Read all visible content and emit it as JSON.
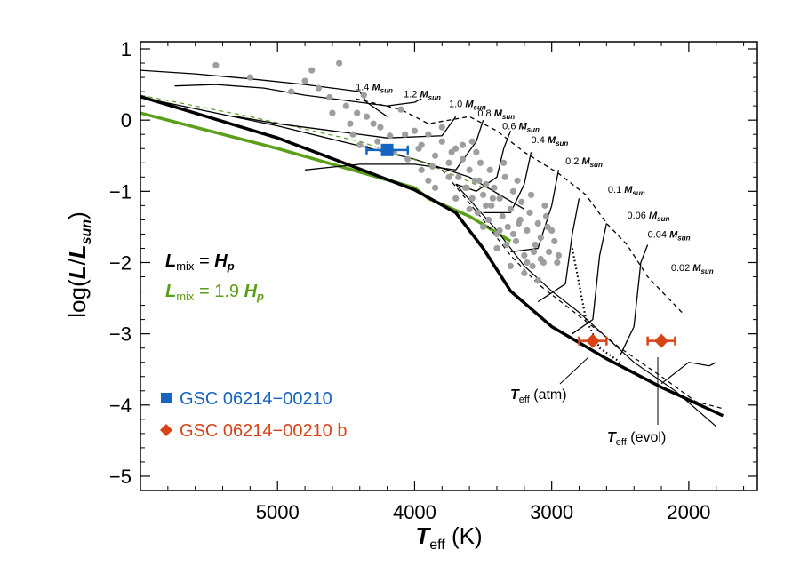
{
  "chart_data": {
    "type": "scatter",
    "title": "",
    "xlabel": "T_eff (K)",
    "ylabel": "log(L/L_sun)",
    "xlim": [
      6000,
      1500
    ],
    "ylim": [
      -5.2,
      1.1
    ],
    "x_ticks": [
      "5000",
      "4000",
      "3000",
      "2000"
    ],
    "y_ticks": [
      "1",
      "0",
      "−1",
      "−2",
      "−3",
      "−4",
      "−5"
    ],
    "grid": false,
    "isochrone_labels": [
      {
        "text": "1.4 M",
        "sub": "sun",
        "at": [
          4430,
          0.42
        ]
      },
      {
        "text": "1.2 M",
        "sub": "sun",
        "at": [
          4080,
          0.32
        ]
      },
      {
        "text": "1.0 M",
        "sub": "sun",
        "at": [
          3750,
          0.18
        ]
      },
      {
        "text": "0.8 M",
        "sub": "sun",
        "at": [
          3540,
          0.05
        ]
      },
      {
        "text": "0.6 M",
        "sub": "sun",
        "at": [
          3360,
          -0.13
        ]
      },
      {
        "text": "0.4 M",
        "sub": "sun",
        "at": [
          3150,
          -0.32
        ]
      },
      {
        "text": "0.2 M",
        "sub": "sun",
        "at": [
          2900,
          -0.62
        ]
      },
      {
        "text": "0.1 M",
        "sub": "sun",
        "at": [
          2590,
          -1.02
        ]
      },
      {
        "text": "0.06 M",
        "sub": "sun",
        "at": [
          2450,
          -1.38
        ]
      },
      {
        "text": "0.04 M",
        "sub": "sun",
        "at": [
          2300,
          -1.65
        ]
      },
      {
        "text": "0.02 M",
        "sub": "sun",
        "at": [
          2130,
          -2.12
        ]
      }
    ],
    "series": [
      {
        "name": "GSC 06214−00210",
        "color": "#1565c0",
        "marker": "square",
        "points": [
          {
            "x": 4200,
            "y": -0.42,
            "xerr": 150
          }
        ]
      },
      {
        "name": "GSC 06214−00210 b",
        "color": "#d84315",
        "marker": "diamond",
        "points": [
          {
            "x": 2700,
            "y": -3.1,
            "xerr": 100
          },
          {
            "x": 2200,
            "y": -3.1,
            "xerr": 100
          }
        ]
      }
    ],
    "background_stars": {
      "color": "#9e9e9e",
      "points": [
        [
          5450,
          0.77
        ],
        [
          5200,
          0.6
        ],
        [
          4900,
          0.4
        ],
        [
          4750,
          0.7
        ],
        [
          4550,
          0.8
        ],
        [
          4700,
          0.45
        ],
        [
          4620,
          0.32
        ],
        [
          4500,
          0.2
        ],
        [
          4420,
          0.1
        ],
        [
          4350,
          0.05
        ],
        [
          4300,
          -0.05
        ],
        [
          4450,
          -0.2
        ],
        [
          4250,
          -0.1
        ],
        [
          4180,
          -0.22
        ],
        [
          4100,
          0.15
        ],
        [
          4000,
          -0.15
        ],
        [
          3950,
          -0.35
        ],
        [
          3900,
          -0.2
        ],
        [
          3850,
          -0.5
        ],
        [
          3800,
          -0.3
        ],
        [
          3750,
          -0.6
        ],
        [
          3700,
          -0.4
        ],
        [
          3680,
          -0.8
        ],
        [
          3650,
          -0.55
        ],
        [
          3620,
          -0.95
        ],
        [
          3600,
          -0.7
        ],
        [
          3580,
          -1.1
        ],
        [
          3560,
          -0.85
        ],
        [
          3540,
          -1.3
        ],
        [
          3520,
          -0.6
        ],
        [
          3500,
          -1.05
        ],
        [
          3480,
          -0.9
        ],
        [
          3460,
          -1.4
        ],
        [
          3440,
          -1.2
        ],
        [
          3420,
          -0.95
        ],
        [
          3400,
          -1.6
        ],
        [
          3380,
          -1.1
        ],
        [
          3360,
          -1.35
        ],
        [
          3340,
          -0.8
        ],
        [
          3320,
          -1.5
        ],
        [
          3300,
          -1.25
        ],
        [
          3280,
          -1.0
        ],
        [
          3260,
          -1.7
        ],
        [
          3240,
          -1.45
        ],
        [
          3220,
          -1.15
        ],
        [
          3200,
          -1.9
        ],
        [
          3180,
          -1.55
        ],
        [
          3160,
          -1.3
        ],
        [
          3140,
          -2.05
        ],
        [
          3120,
          -1.75
        ],
        [
          3100,
          -1.45
        ],
        [
          3080,
          -1.65
        ],
        [
          3060,
          -2.0
        ],
        [
          3040,
          -1.35
        ],
        [
          3020,
          -1.85
        ],
        [
          3000,
          -1.55
        ],
        [
          2980,
          -1.7
        ],
        [
          2960,
          -2.0
        ],
        [
          2950,
          -1.9
        ],
        [
          3050,
          -1.2
        ],
        [
          3150,
          -1.05
        ],
        [
          3250,
          -0.85
        ],
        [
          3350,
          -0.6
        ],
        [
          3450,
          -0.7
        ],
        [
          3550,
          -0.45
        ],
        [
          3650,
          -0.35
        ],
        [
          3750,
          -0.8
        ],
        [
          3850,
          -0.95
        ],
        [
          3950,
          -0.7
        ],
        [
          4050,
          -0.55
        ],
        [
          3700,
          -1.1
        ],
        [
          3600,
          -1.25
        ],
        [
          3500,
          -1.5
        ],
        [
          3400,
          -1.8
        ],
        [
          3300,
          -2.05
        ],
        [
          3200,
          -2.15
        ],
        [
          3100,
          -2.25
        ],
        [
          4600,
          0.1
        ],
        [
          4800,
          0.55
        ],
        [
          4400,
          -0.35
        ],
        [
          4150,
          -0.45
        ],
        [
          3900,
          -0.85
        ],
        [
          3800,
          -0.1
        ],
        [
          3730,
          -0.45
        ],
        [
          3630,
          -0.95
        ],
        [
          3530,
          -0.85
        ],
        [
          3430,
          -1.1
        ],
        [
          3330,
          -1.75
        ],
        [
          3230,
          -1.4
        ],
        [
          3130,
          -1.85
        ],
        [
          3030,
          -1.5
        ],
        [
          3870,
          -0.65
        ],
        [
          3970,
          -0.4
        ],
        [
          4070,
          -0.2
        ],
        [
          4270,
          -0.3
        ],
        [
          4370,
          0.35
        ],
        [
          4470,
          -0.05
        ],
        [
          3580,
          -0.3
        ],
        [
          3480,
          -1.2
        ],
        [
          3380,
          -1.55
        ],
        [
          3280,
          -1.6
        ],
        [
          3180,
          -2.0
        ],
        [
          3080,
          -1.95
        ]
      ]
    },
    "legend_labels": [
      {
        "text": "L",
        "sub": "mix",
        "rest": " = H",
        "rest_sub": "p",
        "color": "#000000"
      },
      {
        "text": "L",
        "sub": "mix",
        "rest": " = 1.9 H",
        "rest_sub": "p",
        "color": "#5a9e1a"
      }
    ],
    "legend_placement": "lower-left",
    "annotations": [
      {
        "text": "T",
        "sub": "eff",
        "rest": " (atm)"
      },
      {
        "text": "T",
        "sub": "eff",
        "rest": " (evol)"
      }
    ]
  }
}
